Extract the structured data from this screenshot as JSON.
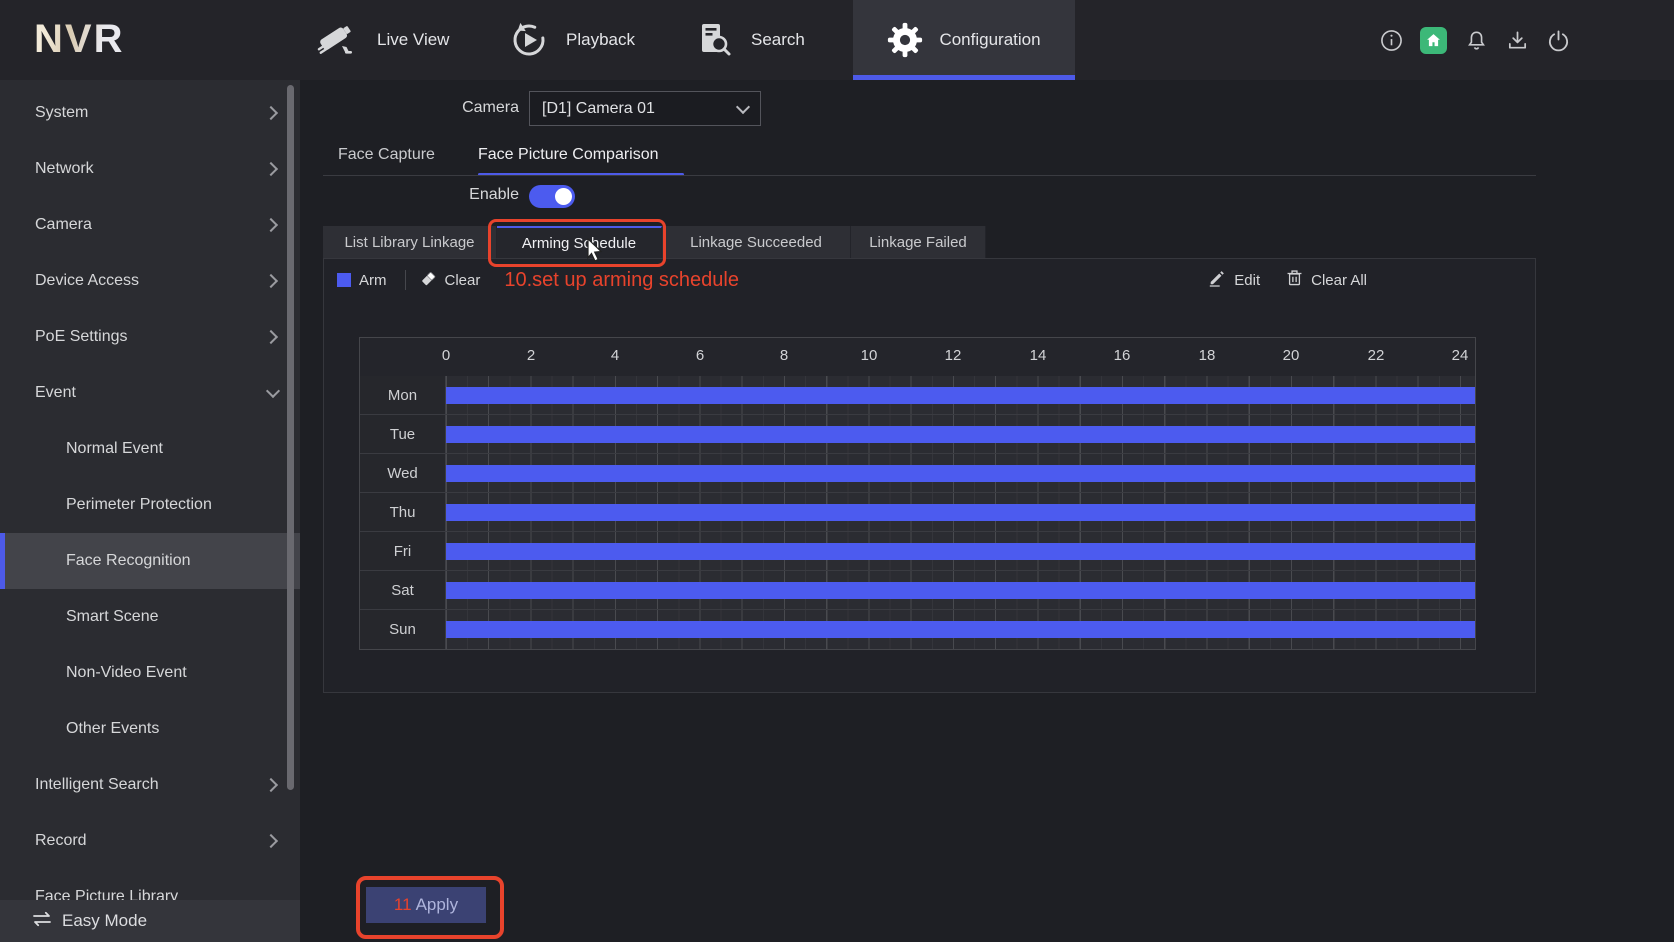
{
  "topbar": {
    "logo": "NVR",
    "nav": [
      {
        "label": "Live View",
        "icon": "cctv-camera-icon"
      },
      {
        "label": "Playback",
        "icon": "playback-icon"
      },
      {
        "label": "Search",
        "icon": "search-doc-icon"
      },
      {
        "label": "Configuration",
        "icon": "gear-icon"
      }
    ],
    "active_nav": "Configuration",
    "right_icons": [
      "info-icon",
      "home-icon",
      "bell-icon",
      "download-icon",
      "power-icon"
    ]
  },
  "sidebar": {
    "items": [
      {
        "label": "System"
      },
      {
        "label": "Network"
      },
      {
        "label": "Camera"
      },
      {
        "label": "Device Access"
      },
      {
        "label": "PoE Settings"
      },
      {
        "label": "Event"
      },
      {
        "label": "Normal Event"
      },
      {
        "label": "Perimeter Protection"
      },
      {
        "label": "Face Recognition"
      },
      {
        "label": "Smart Scene"
      },
      {
        "label": "Non-Video Event"
      },
      {
        "label": "Other Events"
      },
      {
        "label": "Intelligent Search"
      },
      {
        "label": "Record"
      },
      {
        "label": "Face Picture Library"
      }
    ],
    "selected": "Face Recognition",
    "easy_mode_label": "Easy Mode"
  },
  "camera": {
    "label": "Camera",
    "value": "[D1] Camera 01"
  },
  "tabs": {
    "items": [
      "Face Capture",
      "Face Picture Comparison"
    ],
    "active": "Face Picture Comparison"
  },
  "enable": {
    "label": "Enable",
    "on": true
  },
  "subtabs": {
    "items": [
      "List Library Linkage",
      "Arming Schedule",
      "Linkage Succeeded",
      "Linkage Failed"
    ],
    "active": "Arming Schedule"
  },
  "toolbar": {
    "arm": "Arm",
    "clear": "Clear",
    "edit": "Edit",
    "clear_all": "Clear All"
  },
  "annotations": {
    "step10": "10.set up arming schedule",
    "step11": "11"
  },
  "apply": {
    "label": "Apply"
  },
  "schedule": {
    "days": [
      "Mon",
      "Tue",
      "Wed",
      "Thu",
      "Fri",
      "Sat",
      "Sun"
    ],
    "hour_ticks": [
      0,
      2,
      4,
      6,
      8,
      10,
      12,
      14,
      16,
      18,
      20,
      22,
      24
    ],
    "armed": [
      {
        "day": "Mon",
        "start": 0,
        "end": 24
      },
      {
        "day": "Tue",
        "start": 0,
        "end": 24
      },
      {
        "day": "Wed",
        "start": 0,
        "end": 24
      },
      {
        "day": "Thu",
        "start": 0,
        "end": 24
      },
      {
        "day": "Fri",
        "start": 0,
        "end": 24
      },
      {
        "day": "Sat",
        "start": 0,
        "end": 24
      },
      {
        "day": "Sun",
        "start": 0,
        "end": 24
      }
    ],
    "bar_color": "#4c5bef"
  },
  "colors": {
    "accent": "#4d5ae8",
    "bar": "#4c5bef",
    "annotation": "#e8432c",
    "home_badge": "#3cb878"
  }
}
